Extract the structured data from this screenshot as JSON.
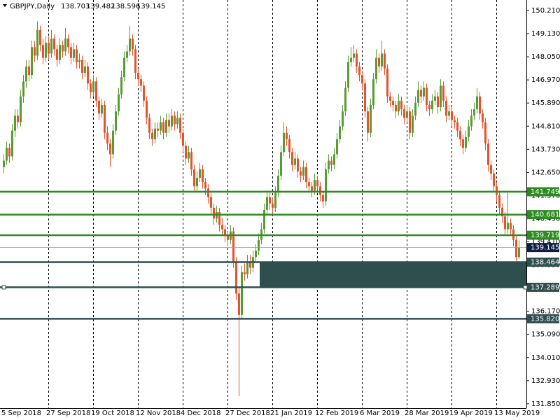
{
  "chart_data": {
    "type": "candlestick",
    "title": "GBPJPY,Daily",
    "up_color": "#5a9a32",
    "down_color": "#e4532c",
    "current_color": "#0d1e45",
    "zone_color": "#2f4f4f",
    "ylim": [
      131.65,
      150.7
    ],
    "yticks": [
      {
        "value": 150.21,
        "label": "150.210"
      },
      {
        "value": 149.13,
        "label": "149.130"
      },
      {
        "value": 148.05,
        "label": "148.050"
      },
      {
        "value": 146.97,
        "label": "146.970"
      },
      {
        "value": 145.89,
        "label": "145.890"
      },
      {
        "value": 144.81,
        "label": "144.810"
      },
      {
        "value": 143.73,
        "label": "143.730"
      },
      {
        "value": 142.65,
        "label": "142.650"
      },
      {
        "value": 141.57,
        "label": "141.570"
      },
      {
        "value": 140.49,
        "label": "140.490"
      },
      {
        "value": 139.41,
        "label": "139.410"
      },
      {
        "value": 138.33,
        "label": "138.330"
      },
      {
        "value": 137.25,
        "label": "137.250"
      },
      {
        "value": 136.17,
        "label": "136.170"
      },
      {
        "value": 135.09,
        "label": "135.090"
      },
      {
        "value": 134.01,
        "label": "134.010"
      },
      {
        "value": 132.93,
        "label": "132.930"
      },
      {
        "value": 131.85,
        "label": "131.850"
      }
    ],
    "levels": [
      {
        "value": 141.749,
        "color": "#2e8b22"
      },
      {
        "value": 140.681,
        "color": "#2e8b22"
      },
      {
        "value": 139.719,
        "color": "#2e8b22"
      },
      {
        "value": 138.464,
        "color": "#2f4f4f"
      },
      {
        "value": 137.289,
        "color": "#2f4f4f"
      },
      {
        "value": 135.82,
        "label": "135.820",
        "color": "#2f4f4f"
      }
    ],
    "categories": [
      "5 Sep 2018",
      null,
      null,
      null,
      null,
      null,
      null,
      null,
      null,
      null,
      null,
      null,
      null,
      null,
      null,
      null,
      "27 Sep 2018",
      null,
      null,
      null,
      null,
      null,
      null,
      null,
      null,
      null,
      null,
      null,
      null,
      null,
      null,
      null,
      "19 Oct 2018",
      null,
      null,
      null,
      null,
      null,
      null,
      null,
      null,
      null,
      null,
      null,
      null,
      null,
      null,
      null,
      "12 Nov 2018",
      null,
      null,
      null,
      null,
      null,
      null,
      null,
      null,
      null,
      null,
      null,
      null,
      null,
      null,
      null,
      "4 Dec 2018",
      null,
      null,
      null,
      null,
      null,
      null,
      null,
      null,
      null,
      null,
      null,
      null,
      null,
      null,
      null,
      "27 Dec 2018",
      null,
      null,
      null,
      null,
      null,
      null,
      null,
      null,
      null,
      null,
      null,
      null,
      null,
      null,
      null,
      "21 Jan 2019",
      null,
      null,
      null,
      null,
      null,
      null,
      null,
      null,
      null,
      null,
      null,
      null,
      null,
      null,
      null,
      "12 Feb 2019",
      null,
      null,
      null,
      null,
      null,
      null,
      null,
      null,
      null,
      null,
      null,
      null,
      null,
      null,
      null,
      "6 Mar 2019",
      null,
      null,
      null,
      null,
      null,
      null,
      null,
      null,
      null,
      null,
      null,
      null,
      null,
      null,
      null,
      "28 Mar 2019",
      null,
      null,
      null,
      null,
      null,
      null,
      null,
      null,
      null,
      null,
      null,
      null,
      null,
      null,
      null,
      "19 Apr 2019",
      null,
      null,
      null,
      null,
      null,
      null,
      null,
      null,
      null,
      null,
      null,
      null,
      null,
      null,
      null,
      "13 May 2019",
      null,
      null,
      null,
      null,
      null,
      null,
      null,
      null
    ],
    "ohlc": [
      [
        142.9,
        143.5,
        142.6,
        143.2
      ],
      [
        143.2,
        144.1,
        143.0,
        143.8
      ],
      [
        143.8,
        144.0,
        143.1,
        143.4
      ],
      [
        143.4,
        144.9,
        143.2,
        144.6
      ],
      [
        144.6,
        145.6,
        144.3,
        145.3
      ],
      [
        145.3,
        145.6,
        144.7,
        145.0
      ],
      [
        145.0,
        146.5,
        144.8,
        146.2
      ],
      [
        146.2,
        147.2,
        145.9,
        146.9
      ],
      [
        146.9,
        147.9,
        146.6,
        147.6
      ],
      [
        147.6,
        147.9,
        146.9,
        147.2
      ],
      [
        147.2,
        148.8,
        147.0,
        148.5
      ],
      [
        148.5,
        148.8,
        147.8,
        148.1
      ],
      [
        148.1,
        149.7,
        147.9,
        149.3
      ],
      [
        149.3,
        149.5,
        148.3,
        148.6
      ],
      [
        148.6,
        148.9,
        147.7,
        148.0
      ],
      [
        148.0,
        149.0,
        147.8,
        148.7
      ],
      [
        148.7,
        149.0,
        147.9,
        148.2
      ],
      [
        148.2,
        149.3,
        148.0,
        148.9
      ],
      [
        148.9,
        149.1,
        148.1,
        148.4
      ],
      [
        148.4,
        148.6,
        147.6,
        147.9
      ],
      [
        147.9,
        148.9,
        147.7,
        148.6
      ],
      [
        148.6,
        148.8,
        148.0,
        148.3
      ],
      [
        148.3,
        149.4,
        148.1,
        148.9
      ],
      [
        148.9,
        149.1,
        148.2,
        148.5
      ],
      [
        148.5,
        148.7,
        147.7,
        148.0
      ],
      [
        148.0,
        148.7,
        147.8,
        148.4
      ],
      [
        148.4,
        148.6,
        147.5,
        147.8
      ],
      [
        147.8,
        148.2,
        147.5,
        147.9
      ],
      [
        147.9,
        148.1,
        147.0,
        147.3
      ],
      [
        147.3,
        147.9,
        147.1,
        147.6
      ],
      [
        147.6,
        147.8,
        146.5,
        146.8
      ],
      [
        146.8,
        147.0,
        146.1,
        146.4
      ],
      [
        146.4,
        147.2,
        146.2,
        146.9
      ],
      [
        146.9,
        147.1,
        145.7,
        146.0
      ],
      [
        146.0,
        146.2,
        145.1,
        145.4
      ],
      [
        145.4,
        146.1,
        145.2,
        145.8
      ],
      [
        145.8,
        146.0,
        144.2,
        144.5
      ],
      [
        144.5,
        144.8,
        143.7,
        144.0
      ],
      [
        144.0,
        144.2,
        142.9,
        143.5
      ],
      [
        143.5,
        144.9,
        143.3,
        144.6
      ],
      [
        144.6,
        145.8,
        144.4,
        145.5
      ],
      [
        145.5,
        146.6,
        145.3,
        146.3
      ],
      [
        146.3,
        147.4,
        146.1,
        147.1
      ],
      [
        147.1,
        148.3,
        146.9,
        148.0
      ],
      [
        148.0,
        148.6,
        147.8,
        148.3
      ],
      [
        148.3,
        149.5,
        148.1,
        148.9
      ],
      [
        148.9,
        149.1,
        148.1,
        148.4
      ],
      [
        148.4,
        148.6,
        147.0,
        147.3
      ],
      [
        147.3,
        147.5,
        146.7,
        147.0
      ],
      [
        147.0,
        147.2,
        146.4,
        146.7
      ],
      [
        146.7,
        146.9,
        145.7,
        146.0
      ],
      [
        146.0,
        146.2,
        144.9,
        145.2
      ],
      [
        145.2,
        145.4,
        144.2,
        144.5
      ],
      [
        144.5,
        144.7,
        143.9,
        144.2
      ],
      [
        144.2,
        145.0,
        144.0,
        144.7
      ],
      [
        144.7,
        145.0,
        144.3,
        144.6
      ],
      [
        144.6,
        145.3,
        144.4,
        145.0
      ],
      [
        145.0,
        145.2,
        144.2,
        144.5
      ],
      [
        144.5,
        145.4,
        144.3,
        145.1
      ],
      [
        145.1,
        145.4,
        144.5,
        144.8
      ],
      [
        144.8,
        145.6,
        144.6,
        145.3
      ],
      [
        145.3,
        145.5,
        144.6,
        144.9
      ],
      [
        144.9,
        145.5,
        144.7,
        145.2
      ],
      [
        145.2,
        145.4,
        144.2,
        144.5
      ],
      [
        144.5,
        144.7,
        143.6,
        143.9
      ],
      [
        143.9,
        144.1,
        143.0,
        143.3
      ],
      [
        143.3,
        143.9,
        143.1,
        143.6
      ],
      [
        143.6,
        143.8,
        142.5,
        142.8
      ],
      [
        142.8,
        143.0,
        141.7,
        142.0
      ],
      [
        142.0,
        142.7,
        141.8,
        142.4
      ],
      [
        142.4,
        143.1,
        142.2,
        142.8
      ],
      [
        142.8,
        143.0,
        141.9,
        142.2
      ],
      [
        142.2,
        142.4,
        141.6,
        141.9
      ],
      [
        141.9,
        142.1,
        141.2,
        141.5
      ],
      [
        141.5,
        141.7,
        140.7,
        141.0
      ],
      [
        141.0,
        141.2,
        140.2,
        140.5
      ],
      [
        140.5,
        141.1,
        140.3,
        140.8
      ],
      [
        140.8,
        141.0,
        139.9,
        140.2
      ],
      [
        140.2,
        140.5,
        139.7,
        140.0
      ],
      [
        140.0,
        140.2,
        139.4,
        139.7
      ],
      [
        139.7,
        139.9,
        139.2,
        139.5
      ],
      [
        139.5,
        140.2,
        139.3,
        139.9
      ],
      [
        139.9,
        140.1,
        138.2,
        138.5
      ],
      [
        138.5,
        138.7,
        136.7,
        137.0
      ],
      [
        137.0,
        137.3,
        132.2,
        136.0
      ],
      [
        136.0,
        138.3,
        135.8,
        138.0
      ],
      [
        138.0,
        138.4,
        137.6,
        137.9
      ],
      [
        137.9,
        138.8,
        137.7,
        138.5
      ],
      [
        138.5,
        138.8,
        137.9,
        138.2
      ],
      [
        138.2,
        139.0,
        138.0,
        138.7
      ],
      [
        138.7,
        139.3,
        138.5,
        139.0
      ],
      [
        139.0,
        139.8,
        138.8,
        139.5
      ],
      [
        139.5,
        140.3,
        139.3,
        140.0
      ],
      [
        140.0,
        141.2,
        139.8,
        140.9
      ],
      [
        140.9,
        141.8,
        140.7,
        141.5
      ],
      [
        141.5,
        141.8,
        140.9,
        141.2
      ],
      [
        141.2,
        141.5,
        140.7,
        141.0
      ],
      [
        141.0,
        142.0,
        140.8,
        141.7
      ],
      [
        141.7,
        142.8,
        141.5,
        142.5
      ],
      [
        142.5,
        143.9,
        142.3,
        143.6
      ],
      [
        143.6,
        145.0,
        143.4,
        144.5
      ],
      [
        144.5,
        144.8,
        143.9,
        144.2
      ],
      [
        144.2,
        144.4,
        143.3,
        143.6
      ],
      [
        143.6,
        143.8,
        142.7,
        143.0
      ],
      [
        143.0,
        143.6,
        142.8,
        143.3
      ],
      [
        143.3,
        143.5,
        142.4,
        142.7
      ],
      [
        142.7,
        142.9,
        142.2,
        142.5
      ],
      [
        142.5,
        143.2,
        142.3,
        142.9
      ],
      [
        142.9,
        143.1,
        141.9,
        142.2
      ],
      [
        142.2,
        142.4,
        141.7,
        142.0
      ],
      [
        142.0,
        142.2,
        141.5,
        141.8
      ],
      [
        141.8,
        142.6,
        141.6,
        142.3
      ],
      [
        142.3,
        142.5,
        141.7,
        142.0
      ],
      [
        142.0,
        142.2,
        141.3,
        141.6
      ],
      [
        141.6,
        141.8,
        141.0,
        141.3
      ],
      [
        141.3,
        143.1,
        141.1,
        142.8
      ],
      [
        142.8,
        143.5,
        142.6,
        143.2
      ],
      [
        143.2,
        143.4,
        142.7,
        143.0
      ],
      [
        143.0,
        143.8,
        142.8,
        143.5
      ],
      [
        143.5,
        144.5,
        143.3,
        144.2
      ],
      [
        144.2,
        145.1,
        144.0,
        144.8
      ],
      [
        144.8,
        145.8,
        144.6,
        145.5
      ],
      [
        145.5,
        146.9,
        145.3,
        146.6
      ],
      [
        146.6,
        148.1,
        146.4,
        147.8
      ],
      [
        147.8,
        148.5,
        147.6,
        148.0
      ],
      [
        148.0,
        148.6,
        147.8,
        148.2
      ],
      [
        148.2,
        148.4,
        147.3,
        147.6
      ],
      [
        147.6,
        147.8,
        146.9,
        147.2
      ],
      [
        147.2,
        147.4,
        146.5,
        146.8
      ],
      [
        146.8,
        147.0,
        145.2,
        145.5
      ],
      [
        145.5,
        145.7,
        144.1,
        144.5
      ],
      [
        144.5,
        146.1,
        144.3,
        145.8
      ],
      [
        145.8,
        147.3,
        145.6,
        147.0
      ],
      [
        147.0,
        148.4,
        146.8,
        148.0
      ],
      [
        148.0,
        148.2,
        147.3,
        147.6
      ],
      [
        147.6,
        148.8,
        147.4,
        148.2
      ],
      [
        148.2,
        148.4,
        147.2,
        147.5
      ],
      [
        147.5,
        147.7,
        145.9,
        146.2
      ],
      [
        146.2,
        146.4,
        145.7,
        146.0
      ],
      [
        146.0,
        146.2,
        145.5,
        145.8
      ],
      [
        145.8,
        146.0,
        145.2,
        145.5
      ],
      [
        145.5,
        146.3,
        145.3,
        146.0
      ],
      [
        146.0,
        146.2,
        145.3,
        145.6
      ],
      [
        145.6,
        145.8,
        144.9,
        145.2
      ],
      [
        145.2,
        145.8,
        145.0,
        145.5
      ],
      [
        145.5,
        145.7,
        144.2,
        144.5
      ],
      [
        144.5,
        145.6,
        144.3,
        145.3
      ],
      [
        145.3,
        146.2,
        145.1,
        145.9
      ],
      [
        145.9,
        146.9,
        145.7,
        146.5
      ],
      [
        146.5,
        146.7,
        145.9,
        146.2
      ],
      [
        146.2,
        146.9,
        146.0,
        146.6
      ],
      [
        146.6,
        146.8,
        145.5,
        145.8
      ],
      [
        145.8,
        146.0,
        145.3,
        145.6
      ],
      [
        145.6,
        146.3,
        145.4,
        146.0
      ],
      [
        146.0,
        146.5,
        145.8,
        146.2
      ],
      [
        146.2,
        146.4,
        145.4,
        145.7
      ],
      [
        145.7,
        147.0,
        145.5,
        146.7
      ],
      [
        146.7,
        146.9,
        145.7,
        146.0
      ],
      [
        146.0,
        146.2,
        145.0,
        145.3
      ],
      [
        145.3,
        145.8,
        145.1,
        145.5
      ],
      [
        145.5,
        145.7,
        144.8,
        145.1
      ],
      [
        145.1,
        145.3,
        144.7,
        145.0
      ],
      [
        145.0,
        145.2,
        144.3,
        144.6
      ],
      [
        144.6,
        144.8,
        143.9,
        144.2
      ],
      [
        144.2,
        144.4,
        143.5,
        143.8
      ],
      [
        143.8,
        144.6,
        143.6,
        144.3
      ],
      [
        144.3,
        145.1,
        144.1,
        144.8
      ],
      [
        144.8,
        145.6,
        144.6,
        145.3
      ],
      [
        145.3,
        145.9,
        145.1,
        145.6
      ],
      [
        145.6,
        146.6,
        145.4,
        146.2
      ],
      [
        146.2,
        146.4,
        145.1,
        145.4
      ],
      [
        145.4,
        145.6,
        144.7,
        145.0
      ],
      [
        145.0,
        145.2,
        143.7,
        144.0
      ],
      [
        144.0,
        144.2,
        142.7,
        143.0
      ],
      [
        143.0,
        143.2,
        142.3,
        142.6
      ],
      [
        142.6,
        142.8,
        141.7,
        142.0
      ],
      [
        142.0,
        142.2,
        141.3,
        141.6
      ],
      [
        141.6,
        141.8,
        140.7,
        141.0
      ],
      [
        141.0,
        141.2,
        140.3,
        140.6
      ],
      [
        140.6,
        140.8,
        139.7,
        140.0
      ],
      [
        140.0,
        141.7,
        139.8,
        140.3
      ],
      [
        140.3,
        140.5,
        139.7,
        140.0
      ],
      [
        140.0,
        140.2,
        139.2,
        139.5
      ],
      [
        139.5,
        139.7,
        138.5,
        138.7
      ],
      [
        138.703,
        139.482,
        138.596,
        139.145
      ]
    ]
  }
}
